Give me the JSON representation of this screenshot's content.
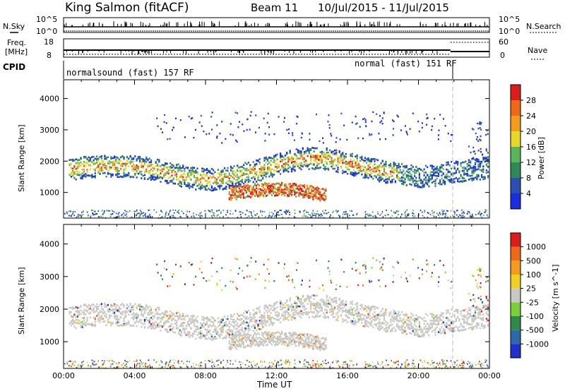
{
  "header": {
    "site": "King Salmon (fitACF)",
    "beam": "Beam 11",
    "date_range": "10/Jul/2015 - 11/Jul/2015"
  },
  "strip_labels": {
    "nsky": "N.Sky",
    "nsearch": "N.Search",
    "freq_line1": "Freq.",
    "freq_line2": "[MHz]",
    "nave": "Nave",
    "cpid": "CPID",
    "noise_tick_top": "10^5",
    "noise_tick_bottom": "10^0",
    "noise_tick_top_right": "10^5",
    "noise_tick_bottom_right": "10^0",
    "freq_tick_top": "18",
    "freq_tick_bottom": "8",
    "nave_tick_top": "60",
    "nave_tick_bottom": "0"
  },
  "cpid": {
    "mode1": "normalsound (fast) 157 RF",
    "mode2": "normal (fast) 151 RF"
  },
  "colors": {
    "accent_dashed": "#b8b8b8",
    "gray_scatter": "#c8c8c4"
  },
  "chart_data": [
    {
      "type": "heatmap",
      "panel": "power",
      "ylabel": "Slant Range [km]",
      "xlabel": "",
      "x_tick_labels": [
        "00:00",
        "04:00",
        "08:00",
        "12:00",
        "16:00",
        "20:00",
        "00:00"
      ],
      "x_ticks_hours": [
        0,
        4,
        8,
        12,
        16,
        20,
        24
      ],
      "xlim_hours": [
        0,
        24
      ],
      "y_tick_labels": [
        "1000",
        "2000",
        "3000",
        "4000"
      ],
      "y_ticks": [
        1000,
        2000,
        3000,
        4000
      ],
      "ylim": [
        180,
        4600
      ],
      "colorbar": {
        "label": "Power [dB]",
        "tick_labels": [
          "4",
          "8",
          "12",
          "16",
          "20",
          "24",
          "28"
        ],
        "colors": [
          "#1a2ee0",
          "#2c4fb6",
          "#2f8a58",
          "#5ab45a",
          "#e8d62a",
          "#f29b1c",
          "#ee6a18",
          "#dd1c1c"
        ]
      },
      "features": [
        {
          "name": "main band",
          "hours": [
            0,
            24
          ],
          "range_km": [
            1400,
            2300
          ],
          "peak_dB": 26
        },
        {
          "name": "low patch",
          "hours": [
            9,
            15
          ],
          "range_km": [
            700,
            1200
          ],
          "peak_dB": 28
        },
        {
          "name": "upper scatter",
          "hours": [
            5,
            22
          ],
          "range_km": [
            2700,
            3600
          ],
          "peak_dB": 8
        },
        {
          "name": "ground near range",
          "hours": [
            0,
            24
          ],
          "range_km": [
            200,
            450
          ],
          "peak_dB": 12
        }
      ]
    },
    {
      "type": "heatmap",
      "panel": "velocity",
      "ylabel": "Slant Range [km]",
      "xlabel": "Time UT",
      "x_tick_labels": [
        "00:00",
        "04:00",
        "08:00",
        "12:00",
        "16:00",
        "20:00",
        "00:00"
      ],
      "x_ticks_hours": [
        0,
        4,
        8,
        12,
        16,
        20,
        24
      ],
      "xlim_hours": [
        0,
        24
      ],
      "y_tick_labels": [
        "1000",
        "2000",
        "3000",
        "4000"
      ],
      "y_ticks": [
        1000,
        2000,
        3000,
        4000
      ],
      "ylim": [
        180,
        4600
      ],
      "colorbar": {
        "label": "Velocity [m s^-1]",
        "tick_labels": [
          "1000",
          "500",
          "100",
          "25",
          "-25",
          "-100",
          "-500",
          "-1000"
        ],
        "colors": [
          "#2030cc",
          "#2a6aaa",
          "#2f8a4a",
          "#7ccf3a",
          "#c8c8c4",
          "#f0d020",
          "#f29b1c",
          "#ee6a18",
          "#dd1c1c"
        ]
      }
    }
  ]
}
